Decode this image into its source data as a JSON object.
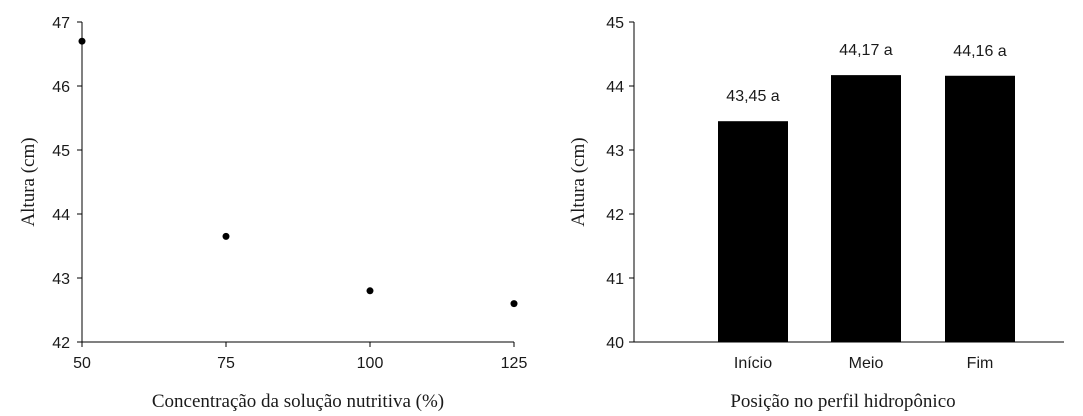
{
  "chart_data": [
    {
      "type": "scatter",
      "xlabel": "Concentração da solução nutritiva (%)",
      "ylabel": "Altura (cm)",
      "xlim": [
        50,
        125
      ],
      "ylim": [
        42,
        47
      ],
      "xticks": [
        "50",
        "75",
        "100",
        "125"
      ],
      "yticks": [
        "42",
        "43",
        "44",
        "45",
        "46",
        "47"
      ],
      "grid": false,
      "points": [
        {
          "x": 50,
          "y": 46.7
        },
        {
          "x": 75,
          "y": 43.65
        },
        {
          "x": 100,
          "y": 42.8
        },
        {
          "x": 125,
          "y": 42.6
        }
      ],
      "marker_color": "#000000"
    },
    {
      "type": "bar",
      "xlabel": "Posição no perfil hidropônico",
      "ylabel": "Altura (cm)",
      "ylim": [
        40,
        45
      ],
      "yticks": [
        "40",
        "41",
        "42",
        "43",
        "44",
        "45"
      ],
      "grid": false,
      "categories": [
        "Início",
        "Meio",
        "Fim"
      ],
      "values": [
        43.45,
        44.17,
        44.16
      ],
      "data_labels": [
        "43,45 a",
        "44,17 a",
        "44,16 a"
      ],
      "bar_color": "#000000"
    }
  ]
}
